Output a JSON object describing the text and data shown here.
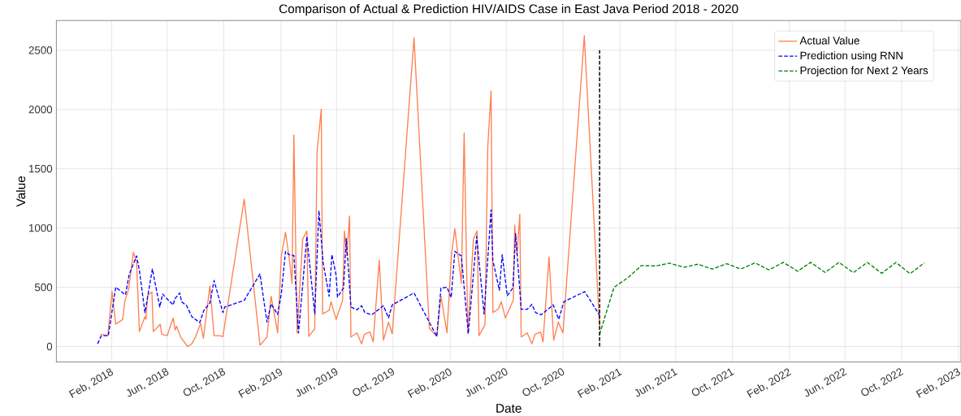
{
  "chart_data": {
    "type": "line",
    "title": "Comparison of Actual & Prediction HIV/AIDS Case in East Java Period 2018 - 2020",
    "xlabel": "Date",
    "ylabel": "Value",
    "xlim": [
      "2017-10-05",
      "2023-02-06"
    ],
    "ylim": [
      -130,
      2750
    ],
    "yticks": [
      0,
      500,
      1000,
      1500,
      2000,
      2500
    ],
    "xticks": [
      {
        "value": "2018-02-01",
        "label": "Feb, 2018"
      },
      {
        "value": "2018-06-01",
        "label": "Jun, 2018"
      },
      {
        "value": "2018-10-01",
        "label": "Oct, 2018"
      },
      {
        "value": "2019-02-01",
        "label": "Feb, 2019"
      },
      {
        "value": "2019-06-01",
        "label": "Jun, 2019"
      },
      {
        "value": "2019-10-01",
        "label": "Oct, 2019"
      },
      {
        "value": "2020-02-01",
        "label": "Feb, 2020"
      },
      {
        "value": "2020-06-01",
        "label": "Jun, 2020"
      },
      {
        "value": "2020-10-01",
        "label": "Oct, 2020"
      },
      {
        "value": "2021-02-01",
        "label": "Feb, 2021"
      },
      {
        "value": "2021-06-01",
        "label": "Jun, 2021"
      },
      {
        "value": "2021-10-01",
        "label": "Oct, 2021"
      },
      {
        "value": "2022-02-01",
        "label": "Feb, 2022"
      },
      {
        "value": "2022-06-01",
        "label": "Jun, 2022"
      },
      {
        "value": "2022-10-01",
        "label": "Oct, 2022"
      },
      {
        "value": "2023-02-01",
        "label": "Feb, 2023"
      }
    ],
    "grid": true,
    "legend": "top right",
    "marker": "none",
    "ref_lines": [
      {
        "axis": "x",
        "value": "2020-12-19",
        "color": "#000000",
        "line_style": "dashed"
      }
    ],
    "series": [
      {
        "name": "Actual Value",
        "color": "#ff7f50",
        "line_style": "solid",
        "x": [
          "2018-01-09",
          "2018-01-24",
          "2018-02-02",
          "2018-02-10",
          "2018-02-25",
          "2018-03-02",
          "2018-03-10",
          "2018-03-20",
          "2018-03-27",
          "2018-04-02",
          "2018-04-14",
          "2018-04-16",
          "2018-04-20",
          "2018-04-29",
          "2018-05-02",
          "2018-05-17",
          "2018-05-20",
          "2018-06-01",
          "2018-06-14",
          "2018-06-18",
          "2018-06-21",
          "2018-06-30",
          "2018-07-15",
          "2018-07-24",
          "2018-08-01",
          "2018-08-12",
          "2018-08-18",
          "2018-09-01",
          "2018-09-10",
          "2018-09-20",
          "2018-09-29",
          "2018-11-14",
          "2018-12-18",
          "2019-01-02",
          "2019-01-11",
          "2019-01-25",
          "2019-02-02",
          "2019-02-11",
          "2019-02-19",
          "2019-02-25",
          "2019-03-01",
          "2019-03-08",
          "2019-03-20",
          "2019-03-29",
          "2019-04-02",
          "2019-04-15",
          "2019-04-20",
          "2019-04-29",
          "2019-05-02",
          "2019-05-16",
          "2019-05-20",
          "2019-05-31",
          "2019-06-14",
          "2019-06-18",
          "2019-06-23",
          "2019-06-29",
          "2019-07-02",
          "2019-07-15",
          "2019-07-25",
          "2019-07-31",
          "2019-08-12",
          "2019-08-19",
          "2019-09-01",
          "2019-09-10",
          "2019-09-21",
          "2019-09-29",
          "2019-11-15",
          "2019-12-18",
          "2020-01-03",
          "2020-01-12",
          "2020-01-25",
          "2020-02-04",
          "2020-02-11",
          "2020-02-25",
          "2020-03-02",
          "2020-03-10",
          "2020-03-22",
          "2020-03-30",
          "2020-04-03",
          "2020-04-16",
          "2020-04-22",
          "2020-04-29",
          "2020-05-03",
          "2020-05-15",
          "2020-05-21",
          "2020-05-30",
          "2020-06-16",
          "2020-06-19",
          "2020-06-24",
          "2020-06-30",
          "2020-07-03",
          "2020-07-16",
          "2020-07-26",
          "2020-08-02",
          "2020-08-14",
          "2020-08-19",
          "2020-09-01",
          "2020-09-11",
          "2020-09-21",
          "2020-10-01",
          "2020-11-16",
          "2020-12-19"
        ],
        "values": [
          103,
          92,
          466,
          188,
          229,
          390,
          486,
          796,
          711,
          126,
          252,
          229,
          431,
          459,
          126,
          188,
          103,
          92,
          241,
          138,
          172,
          80,
          0,
          23,
          80,
          195,
          69,
          512,
          92,
          92,
          85,
          1243,
          11,
          80,
          424,
          115,
          768,
          963,
          745,
          532,
          1785,
          115,
          906,
          975,
          85,
          149,
          1640,
          2003,
          275,
          305,
          378,
          229,
          390,
          975,
          768,
          1101,
          80,
          115,
          23,
          103,
          122,
          39,
          729,
          53,
          206,
          108,
          2604,
          154,
          85,
          424,
          115,
          791,
          993,
          532,
          1801,
          115,
          906,
          975,
          92,
          184,
          1686,
          2156,
          287,
          317,
          378,
          241,
          390,
          1025,
          768,
          1117,
          80,
          115,
          23,
          103,
          122,
          39,
          757,
          53,
          206,
          115,
          2622,
          161
        ]
      },
      {
        "name": "Prediction using RNN",
        "color": "#0000ff",
        "line_style": "dashed",
        "x": [
          "2018-01-02",
          "2018-01-10",
          "2018-01-25",
          "2018-02-10",
          "2018-03-03",
          "2018-03-11",
          "2018-03-27",
          "2018-04-02",
          "2018-04-14",
          "2018-04-30",
          "2018-05-16",
          "2018-05-22",
          "2018-06-01",
          "2018-06-14",
          "2018-06-17",
          "2018-06-28",
          "2018-07-02",
          "2018-07-13",
          "2018-07-24",
          "2018-08-10",
          "2018-08-19",
          "2018-09-01",
          "2018-09-10",
          "2018-09-29",
          "2018-10-03",
          "2018-11-14",
          "2018-12-18",
          "2019-01-02",
          "2019-01-11",
          "2019-01-25",
          "2019-02-02",
          "2019-02-11",
          "2019-02-19",
          "2019-03-01",
          "2019-03-11",
          "2019-03-29",
          "2019-04-15",
          "2019-04-24",
          "2019-05-03",
          "2019-05-16",
          "2019-05-22",
          "2019-05-31",
          "2019-06-03",
          "2019-06-16",
          "2019-06-22",
          "2019-07-02",
          "2019-07-15",
          "2019-07-25",
          "2019-08-01",
          "2019-08-16",
          "2019-09-10",
          "2019-09-21",
          "2019-09-29",
          "2019-11-15",
          "2020-01-03",
          "2020-01-12",
          "2020-01-25",
          "2020-02-03",
          "2020-02-11",
          "2020-02-25",
          "2020-03-11",
          "2020-03-29",
          "2020-04-14",
          "2020-04-29",
          "2020-05-03",
          "2020-05-17",
          "2020-05-23",
          "2020-06-03",
          "2020-06-15",
          "2020-06-21",
          "2020-07-03",
          "2020-07-16",
          "2020-07-26",
          "2020-08-03",
          "2020-08-15",
          "2020-09-10",
          "2020-09-22",
          "2020-10-03",
          "2020-11-17",
          "2020-12-19"
        ],
        "values": [
          23,
          92,
          92,
          500,
          436,
          608,
          764,
          642,
          287,
          654,
          333,
          443,
          401,
          351,
          401,
          452,
          378,
          344,
          252,
          202,
          305,
          367,
          557,
          287,
          333,
          390,
          612,
          206,
          360,
          271,
          447,
          803,
          775,
          768,
          115,
          929,
          275,
          1147,
          711,
          424,
          775,
          603,
          418,
          493,
          911,
          333,
          310,
          344,
          287,
          268,
          344,
          241,
          351,
          452,
          85,
          493,
          500,
          413,
          803,
          764,
          108,
          929,
          275,
          1154,
          723,
          475,
          775,
          429,
          493,
          952,
          314,
          314,
          356,
          287,
          268,
          351,
          229,
          378,
          463,
          264
        ]
      },
      {
        "name": "Projection for Next 2 Years",
        "color": "#008000",
        "line_style": "dashed",
        "x": [
          "2020-12-19",
          "2021-01-19",
          "2021-02-19",
          "2021-03-19",
          "2021-04-19",
          "2021-05-19",
          "2021-06-19",
          "2021-07-19",
          "2021-08-19",
          "2021-09-19",
          "2021-10-19",
          "2021-11-19",
          "2021-12-19",
          "2022-01-19",
          "2022-02-19",
          "2022-03-19",
          "2022-04-19",
          "2022-05-19",
          "2022-06-19",
          "2022-07-19",
          "2022-08-19",
          "2022-09-19",
          "2022-10-19",
          "2022-11-19"
        ],
        "values": [
          103,
          499,
          584,
          683,
          680,
          703,
          669,
          694,
          653,
          699,
          653,
          706,
          646,
          710,
          635,
          710,
          625,
          710,
          623,
          710,
          618,
          710,
          614,
          706
        ]
      }
    ]
  }
}
